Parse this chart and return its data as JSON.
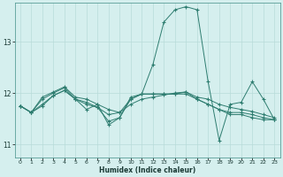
{
  "xlabel": "Humidex (Indice chaleur)",
  "background_color": "#d5efee",
  "grid_color": "#b8dbd9",
  "line_color": "#2e7d70",
  "xlim": [
    -0.5,
    23.5
  ],
  "ylim": [
    10.75,
    13.75
  ],
  "yticks": [
    11,
    12,
    13
  ],
  "xticks": [
    0,
    1,
    2,
    3,
    4,
    5,
    6,
    7,
    8,
    9,
    10,
    11,
    12,
    13,
    14,
    15,
    16,
    17,
    18,
    19,
    20,
    21,
    22,
    23
  ],
  "series": [
    [
      11.75,
      11.62,
      11.75,
      11.95,
      12.05,
      11.88,
      11.78,
      11.72,
      11.58,
      11.62,
      11.78,
      11.88,
      11.92,
      11.96,
      12.0,
      12.02,
      11.92,
      11.88,
      11.78,
      11.72,
      11.68,
      11.64,
      11.58,
      11.52
    ],
    [
      11.75,
      11.62,
      11.88,
      12.0,
      12.1,
      11.88,
      11.82,
      11.72,
      11.45,
      11.52,
      11.92,
      11.98,
      12.55,
      13.38,
      13.62,
      13.68,
      13.62,
      12.22,
      11.08,
      11.78,
      11.82,
      12.22,
      11.88,
      11.48
    ],
    [
      11.75,
      11.62,
      11.78,
      11.95,
      12.05,
      11.88,
      11.68,
      11.78,
      11.38,
      11.52,
      11.88,
      11.98,
      11.98,
      11.98,
      11.98,
      12.02,
      11.88,
      11.78,
      11.68,
      11.58,
      11.58,
      11.52,
      11.48,
      11.48
    ],
    [
      11.75,
      11.62,
      11.92,
      12.02,
      12.12,
      11.92,
      11.88,
      11.78,
      11.68,
      11.62,
      11.88,
      11.98,
      11.98,
      11.98,
      11.98,
      11.98,
      11.88,
      11.78,
      11.68,
      11.62,
      11.62,
      11.58,
      11.52,
      11.48
    ]
  ]
}
